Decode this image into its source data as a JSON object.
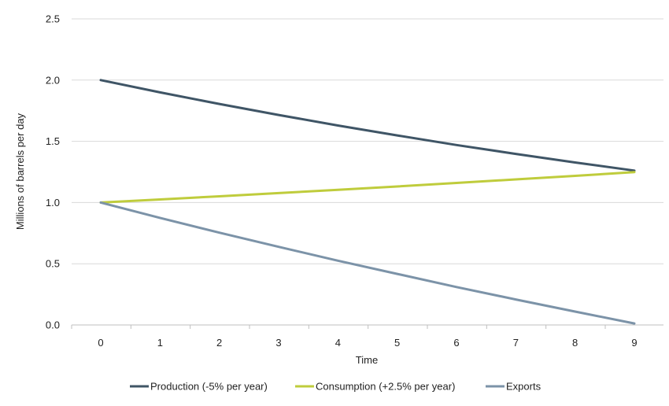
{
  "chart_data": {
    "type": "line",
    "title": "",
    "xlabel": "Time",
    "ylabel": "Millions of barrels per day",
    "x": [
      0,
      1,
      2,
      3,
      4,
      5,
      6,
      7,
      8,
      9
    ],
    "x_tick_labels": [
      "0",
      "1",
      "2",
      "3",
      "4",
      "5",
      "6",
      "7",
      "8",
      "9"
    ],
    "y_tick_labels": [
      "0.0",
      "0.5",
      "1.0",
      "1.5",
      "2.0",
      "2.5"
    ],
    "y_ticks": [
      0,
      0.5,
      1.0,
      1.5,
      2.0,
      2.5
    ],
    "ylim": [
      0,
      2.5
    ],
    "xlim": [
      0,
      9
    ],
    "grid": "horizontal",
    "legend_position": "bottom",
    "series": [
      {
        "name": "Production (-5% per year)",
        "color": "#3f5566",
        "values": [
          2.0,
          1.9,
          1.805,
          1.715,
          1.629,
          1.548,
          1.47,
          1.397,
          1.327,
          1.261
        ]
      },
      {
        "name": "Consumption (+2.5% per year)",
        "color": "#bfcc3c",
        "values": [
          1.0,
          1.025,
          1.051,
          1.077,
          1.104,
          1.131,
          1.16,
          1.189,
          1.218,
          1.249
        ]
      },
      {
        "name": "Exports",
        "color": "#7c93a8",
        "values": [
          1.0,
          0.875,
          0.754,
          0.638,
          0.525,
          0.417,
          0.31,
          0.208,
          0.109,
          0.012
        ]
      }
    ]
  }
}
